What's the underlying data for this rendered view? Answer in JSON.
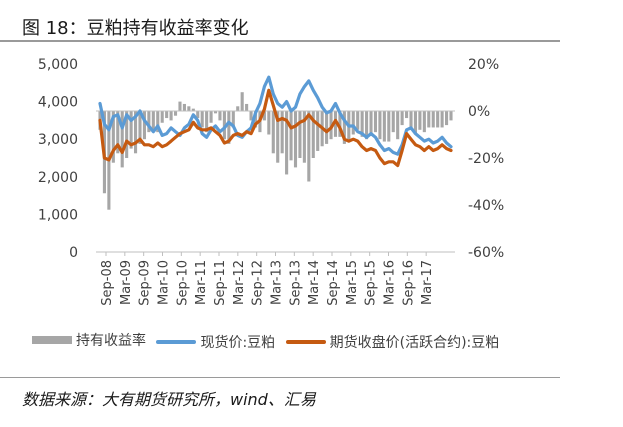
{
  "header": {
    "title": "图 18：豆粕持有收益率变化"
  },
  "footer": {
    "source": "数据来源：大有期货研究所，wind、汇易"
  },
  "colors": {
    "spot": "#5b9bd5",
    "futures": "#c55a11",
    "carry": "#a6a6a6"
  },
  "chart_data": {
    "type": "line+bar",
    "title": "",
    "x_tick_labels": [
      "Sep-08",
      "Mar-09",
      "Sep-09",
      "Mar-10",
      "Sep-10",
      "Mar-11",
      "Sep-11",
      "Mar-12",
      "Sep-12",
      "Mar-13",
      "Sep-13",
      "Mar-14",
      "Sep-14",
      "Mar-15",
      "Sep-15",
      "Mar-16",
      "Sep-16",
      "Mar-17"
    ],
    "x_range": [
      "Sep-08",
      "Sep-17"
    ],
    "y_left": {
      "ticks": [
        "0",
        "1,000",
        "2,000",
        "3,000",
        "4,000",
        "5,000"
      ],
      "range": [
        0,
        5000
      ]
    },
    "y_right": {
      "ticks": [
        "-60%",
        "-40%",
        "-20%",
        "0%",
        "20%"
      ],
      "range": [
        -60,
        20
      ]
    },
    "legend_position": "bottom",
    "grid": false,
    "legend": [
      "持有收益率",
      "现货价:豆粕",
      "期货收盘价(活跃合约):豆粕"
    ],
    "series": [
      {
        "name": "现货价:豆粕",
        "type": "line",
        "axis": "left",
        "color": "#5b9bd5",
        "points": [
          [
            0,
            3950
          ],
          [
            1,
            3400
          ],
          [
            2,
            3250
          ],
          [
            3,
            3600
          ],
          [
            4,
            3650
          ],
          [
            5,
            3300
          ],
          [
            6,
            3650
          ],
          [
            7,
            3500
          ],
          [
            8,
            3600
          ],
          [
            9,
            3750
          ],
          [
            10,
            3500
          ],
          [
            11,
            3350
          ],
          [
            12,
            3200
          ],
          [
            13,
            3350
          ],
          [
            14,
            3100
          ],
          [
            15,
            3150
          ],
          [
            16,
            3300
          ],
          [
            17,
            3200
          ],
          [
            18,
            3100
          ],
          [
            19,
            3300
          ],
          [
            20,
            3400
          ],
          [
            21,
            3650
          ],
          [
            22,
            3500
          ],
          [
            23,
            3150
          ],
          [
            24,
            3050
          ],
          [
            25,
            3250
          ],
          [
            26,
            3350
          ],
          [
            27,
            3200
          ],
          [
            28,
            3300
          ],
          [
            29,
            3450
          ],
          [
            30,
            3350
          ],
          [
            31,
            3100
          ],
          [
            32,
            3050
          ],
          [
            33,
            3200
          ],
          [
            34,
            3300
          ],
          [
            35,
            3700
          ],
          [
            36,
            3950
          ],
          [
            37,
            4400
          ],
          [
            38,
            4650
          ],
          [
            39,
            4200
          ],
          [
            40,
            3950
          ],
          [
            41,
            3850
          ],
          [
            42,
            4000
          ],
          [
            43,
            3750
          ],
          [
            44,
            3850
          ],
          [
            45,
            4200
          ],
          [
            46,
            4400
          ],
          [
            47,
            4550
          ],
          [
            48,
            4300
          ],
          [
            49,
            4100
          ],
          [
            50,
            3850
          ],
          [
            51,
            3700
          ],
          [
            52,
            3750
          ],
          [
            53,
            3950
          ],
          [
            54,
            3700
          ],
          [
            55,
            3500
          ],
          [
            56,
            3350
          ],
          [
            57,
            3350
          ],
          [
            58,
            3200
          ],
          [
            59,
            3150
          ],
          [
            60,
            3050
          ],
          [
            61,
            3150
          ],
          [
            62,
            3050
          ],
          [
            63,
            2850
          ],
          [
            64,
            2700
          ],
          [
            65,
            2750
          ],
          [
            66,
            2650
          ],
          [
            67,
            2600
          ],
          [
            68,
            2850
          ],
          [
            69,
            3250
          ],
          [
            70,
            3300
          ],
          [
            71,
            3150
          ],
          [
            72,
            3050
          ],
          [
            73,
            2950
          ],
          [
            74,
            3000
          ],
          [
            75,
            2900
          ],
          [
            76,
            2950
          ],
          [
            77,
            3050
          ],
          [
            78,
            2900
          ],
          [
            79,
            2800
          ]
        ]
      },
      {
        "name": "期货收盘价(活跃合约):豆粕",
        "type": "line",
        "axis": "left",
        "color": "#c55a11",
        "points": [
          [
            0,
            3500
          ],
          [
            1,
            2500
          ],
          [
            2,
            2450
          ],
          [
            3,
            2700
          ],
          [
            4,
            2850
          ],
          [
            5,
            2650
          ],
          [
            6,
            2950
          ],
          [
            7,
            2850
          ],
          [
            8,
            2900
          ],
          [
            9,
            3000
          ],
          [
            10,
            2850
          ],
          [
            11,
            2850
          ],
          [
            12,
            2800
          ],
          [
            13,
            2900
          ],
          [
            14,
            2800
          ],
          [
            15,
            2850
          ],
          [
            16,
            2950
          ],
          [
            17,
            3050
          ],
          [
            18,
            3150
          ],
          [
            19,
            3200
          ],
          [
            20,
            3250
          ],
          [
            21,
            3450
          ],
          [
            22,
            3300
          ],
          [
            23,
            3250
          ],
          [
            24,
            3250
          ],
          [
            25,
            3300
          ],
          [
            26,
            3200
          ],
          [
            27,
            3100
          ],
          [
            28,
            2900
          ],
          [
            29,
            2950
          ],
          [
            30,
            3100
          ],
          [
            31,
            3150
          ],
          [
            32,
            3100
          ],
          [
            33,
            3200
          ],
          [
            34,
            3150
          ],
          [
            35,
            3400
          ],
          [
            36,
            3500
          ],
          [
            37,
            3800
          ],
          [
            38,
            4300
          ],
          [
            39,
            3900
          ],
          [
            40,
            3500
          ],
          [
            41,
            3550
          ],
          [
            42,
            3500
          ],
          [
            43,
            3300
          ],
          [
            44,
            3350
          ],
          [
            45,
            3450
          ],
          [
            46,
            3500
          ],
          [
            47,
            3650
          ],
          [
            48,
            3500
          ],
          [
            49,
            3400
          ],
          [
            50,
            3300
          ],
          [
            51,
            3200
          ],
          [
            52,
            3300
          ],
          [
            53,
            3500
          ],
          [
            54,
            3300
          ],
          [
            55,
            3000
          ],
          [
            56,
            2950
          ],
          [
            57,
            3000
          ],
          [
            58,
            2950
          ],
          [
            59,
            2800
          ],
          [
            60,
            2700
          ],
          [
            61,
            2750
          ],
          [
            62,
            2700
          ],
          [
            63,
            2500
          ],
          [
            64,
            2350
          ],
          [
            65,
            2400
          ],
          [
            66,
            2400
          ],
          [
            67,
            2300
          ],
          [
            68,
            2700
          ],
          [
            69,
            3150
          ],
          [
            70,
            3000
          ],
          [
            71,
            2850
          ],
          [
            72,
            2800
          ],
          [
            73,
            2700
          ],
          [
            74,
            2800
          ],
          [
            75,
            2700
          ],
          [
            76,
            2750
          ],
          [
            77,
            2850
          ],
          [
            78,
            2750
          ],
          [
            79,
            2700
          ]
        ]
      },
      {
        "name": "持有收益率",
        "type": "bar",
        "axis": "right",
        "color": "#a6a6a6",
        "points": [
          [
            0,
            -8
          ],
          [
            1,
            -35
          ],
          [
            2,
            -42
          ],
          [
            3,
            -22
          ],
          [
            4,
            -18
          ],
          [
            5,
            -24
          ],
          [
            6,
            -20
          ],
          [
            7,
            -16
          ],
          [
            8,
            -18
          ],
          [
            9,
            -14
          ],
          [
            10,
            -12
          ],
          [
            11,
            -9
          ],
          [
            12,
            -8
          ],
          [
            13,
            -9
          ],
          [
            14,
            -5
          ],
          [
            15,
            -3
          ],
          [
            16,
            -4
          ],
          [
            17,
            -2
          ],
          [
            18,
            4
          ],
          [
            19,
            3
          ],
          [
            20,
            2
          ],
          [
            21,
            1
          ],
          [
            22,
            -3
          ],
          [
            23,
            -7
          ],
          [
            24,
            -9
          ],
          [
            25,
            -5
          ],
          [
            26,
            -1
          ],
          [
            27,
            -4
          ],
          [
            28,
            -12
          ],
          [
            29,
            -14
          ],
          [
            30,
            -7
          ],
          [
            31,
            2
          ],
          [
            32,
            8
          ],
          [
            33,
            3
          ],
          [
            34,
            -4
          ],
          [
            35,
            -7
          ],
          [
            36,
            -9
          ],
          [
            37,
            -4
          ],
          [
            38,
            -10
          ],
          [
            39,
            -18
          ],
          [
            40,
            -22
          ],
          [
            41,
            -18
          ],
          [
            42,
            -27
          ],
          [
            43,
            -21
          ],
          [
            44,
            -24
          ],
          [
            45,
            -20
          ],
          [
            46,
            -22
          ],
          [
            47,
            -30
          ],
          [
            48,
            -20
          ],
          [
            49,
            -17
          ],
          [
            50,
            -15
          ],
          [
            51,
            -14
          ],
          [
            52,
            -12
          ],
          [
            53,
            -11
          ],
          [
            54,
            -11
          ],
          [
            55,
            -14
          ],
          [
            56,
            -12
          ],
          [
            57,
            -10
          ],
          [
            58,
            -8
          ],
          [
            59,
            -11
          ],
          [
            60,
            -12
          ],
          [
            61,
            -10
          ],
          [
            62,
            -9
          ],
          [
            63,
            -12
          ],
          [
            64,
            -13
          ],
          [
            65,
            -13
          ],
          [
            66,
            -9
          ],
          [
            67,
            -12
          ],
          [
            68,
            -6
          ],
          [
            69,
            -3
          ],
          [
            70,
            -8
          ],
          [
            71,
            -10
          ],
          [
            72,
            -8
          ],
          [
            73,
            -9
          ],
          [
            74,
            -7
          ],
          [
            75,
            -7
          ],
          [
            76,
            -7
          ],
          [
            77,
            -7
          ],
          [
            78,
            -6
          ],
          [
            79,
            -4
          ]
        ]
      }
    ]
  }
}
